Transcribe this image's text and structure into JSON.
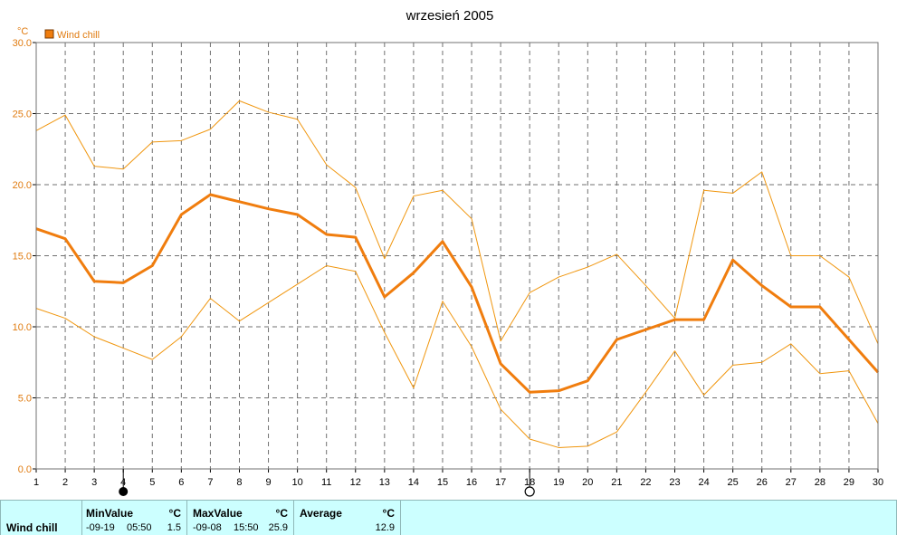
{
  "chart_data": {
    "type": "line",
    "title": "wrzesień 2005",
    "unit": "°C",
    "x": [
      1,
      2,
      3,
      4,
      5,
      6,
      7,
      8,
      9,
      10,
      11,
      12,
      13,
      14,
      15,
      16,
      17,
      18,
      19,
      20,
      21,
      22,
      23,
      24,
      25,
      26,
      27,
      28,
      29,
      30
    ],
    "xlim": [
      1,
      30
    ],
    "ylim": [
      0,
      30
    ],
    "yticks": [
      "0.0",
      "5.0",
      "10.0",
      "15.0",
      "20.0",
      "25.0",
      "30.0"
    ],
    "grid": true,
    "legend_position": "top-left",
    "series": [
      {
        "name": "Wind chill",
        "role": "average",
        "values": [
          16.9,
          16.2,
          13.2,
          13.1,
          14.3,
          17.9,
          19.3,
          18.8,
          18.3,
          17.9,
          16.5,
          16.3,
          12.1,
          13.8,
          16.0,
          12.8,
          7.4,
          5.4,
          5.5,
          6.2,
          9.1,
          9.8,
          10.5,
          10.5,
          14.7,
          12.9,
          11.4,
          11.4,
          9.1,
          6.8
        ]
      },
      {
        "role": "max",
        "values": [
          23.8,
          24.9,
          21.3,
          21.1,
          23.0,
          23.1,
          23.9,
          25.9,
          25.1,
          24.6,
          21.4,
          19.8,
          14.8,
          19.2,
          19.6,
          17.6,
          9.0,
          12.4,
          13.5,
          14.2,
          15.1,
          12.9,
          10.6,
          19.6,
          19.4,
          20.9,
          15.0,
          15.0,
          13.5,
          8.8
        ]
      },
      {
        "role": "min",
        "values": [
          11.3,
          10.6,
          9.3,
          8.5,
          7.7,
          9.3,
          12.0,
          10.4,
          11.7,
          13.0,
          14.3,
          13.9,
          9.6,
          5.7,
          11.8,
          8.6,
          4.2,
          2.1,
          1.5,
          1.6,
          2.6,
          5.4,
          8.3,
          5.2,
          7.3,
          7.5,
          8.8,
          6.7,
          6.9,
          3.2
        ]
      }
    ],
    "colors": {
      "accent": "#f07d0e",
      "thin": "#f0960e",
      "grid": "#707070"
    },
    "markers": {
      "min_day": 4,
      "max_day": 18
    }
  },
  "stats": {
    "series_label": "Wind chill",
    "min": {
      "label": "MinValue",
      "unit": "°C",
      "date": "-09-19",
      "time": "05:50",
      "value": "1.5"
    },
    "max": {
      "label": "MaxValue",
      "unit": "°C",
      "date": "-09-08",
      "time": "15:50",
      "value": "25.9"
    },
    "avg": {
      "label": "Average",
      "unit": "°C",
      "value": "12.9"
    }
  }
}
